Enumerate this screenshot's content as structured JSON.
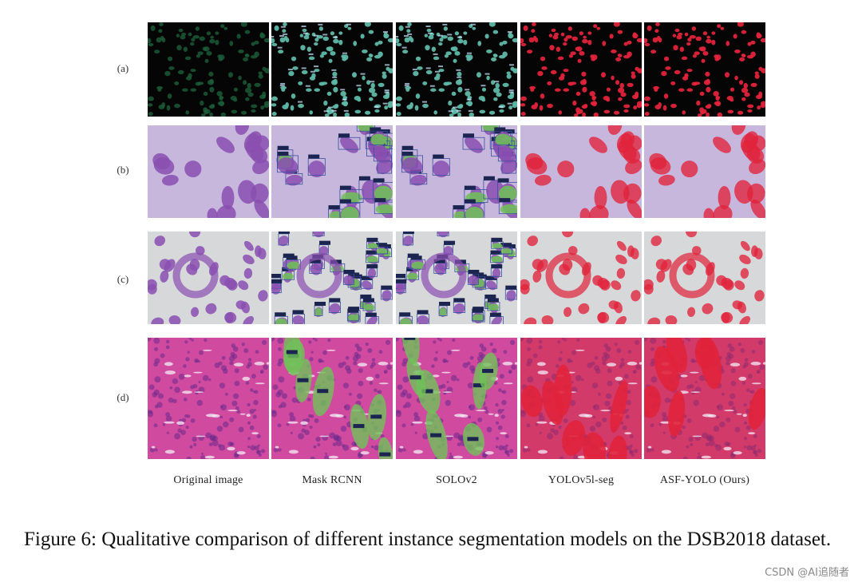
{
  "figure": {
    "row_labels": [
      "(a)",
      "(b)",
      "(c)",
      "(d)"
    ],
    "column_labels": [
      "Original image",
      "Mask RCNN",
      "SOLOv2",
      "YOLOv5l-seg",
      "ASF-YOLO (Ours)"
    ],
    "caption": "Figure 6: Qualitative comparison of different instance segmentation models on the DSB2018 dataset."
  },
  "watermark": "CSDN @AI追随者",
  "colors": {
    "fluorescence_background": "#050505",
    "fluorescence_nuclei": "#1d5e3a",
    "mask_teal": "#5fb8a8",
    "mask_green": "#6fc257",
    "mask_red": "#e0233b",
    "stain_purple": "#8a4fb0",
    "stain_pink": "#d04aa0",
    "label_box": "#1b2550"
  }
}
